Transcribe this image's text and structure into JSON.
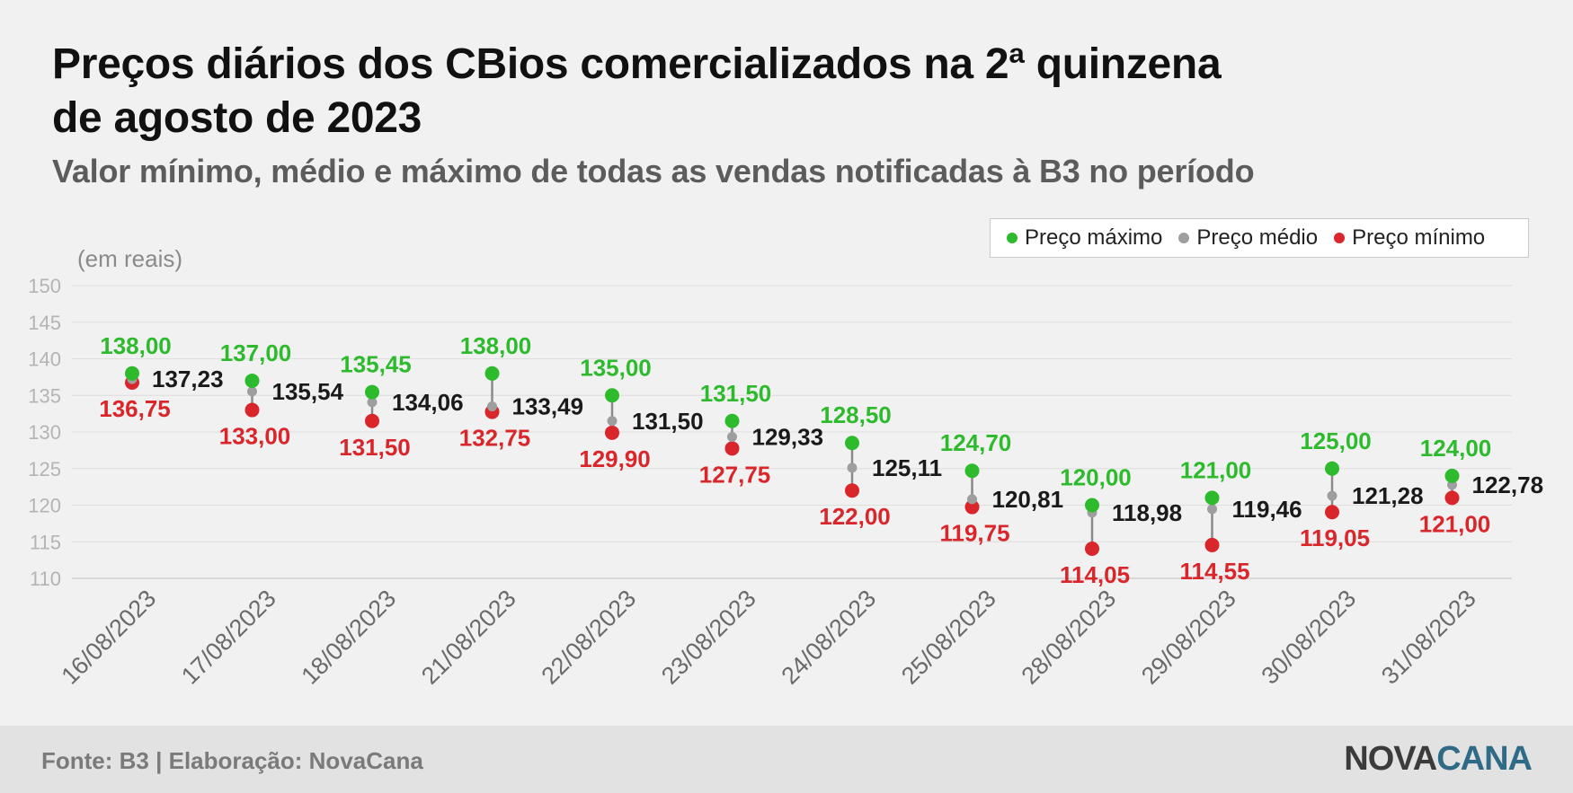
{
  "title_line1": "Preços diários dos CBios comercializados na 2ª quinzena",
  "title_line2": "de agosto de 2023",
  "subtitle": "Valor mínimo, médio e máximo de todas as vendas notificadas à B3 no período",
  "colors": {
    "max": "#2dbb2d",
    "mean": "#9e9e9e",
    "min": "#d9262b",
    "connector": "#8a8a8a",
    "text_mean": "#1a1a1a"
  },
  "chart_data": {
    "type": "scatter",
    "unit_label": "(em reais)",
    "ylim": [
      110,
      150
    ],
    "y_ticks": [
      "110",
      "115",
      "120",
      "125",
      "130",
      "135",
      "140",
      "145",
      "150"
    ],
    "grid": true,
    "legend_position": "top-right",
    "categories": [
      "16/08/2023",
      "17/08/2023",
      "18/08/2023",
      "21/08/2023",
      "22/08/2023",
      "23/08/2023",
      "24/08/2023",
      "25/08/2023",
      "28/08/2023",
      "29/08/2023",
      "30/08/2023",
      "31/08/2023"
    ],
    "series": [
      {
        "name": "Preço máximo",
        "key": "max",
        "values": [
          138.0,
          137.0,
          135.45,
          138.0,
          135.0,
          131.5,
          128.5,
          124.7,
          120.0,
          121.0,
          125.0,
          124.0
        ],
        "labels": [
          "138,00",
          "137,00",
          "135,45",
          "138,00",
          "135,00",
          "131,50",
          "128,50",
          "124,70",
          "120,00",
          "121,00",
          "125,00",
          "124,00"
        ]
      },
      {
        "name": "Preço médio",
        "key": "mean",
        "values": [
          137.23,
          135.54,
          134.06,
          133.49,
          131.5,
          129.33,
          125.11,
          120.81,
          118.98,
          119.46,
          121.28,
          122.78
        ],
        "labels": [
          "137,23",
          "135,54",
          "134,06",
          "133,49",
          "131,50",
          "129,33",
          "125,11",
          "120,81",
          "118,98",
          "119,46",
          "121,28",
          "122,78"
        ]
      },
      {
        "name": "Preço mínimo",
        "key": "min",
        "values": [
          136.75,
          133.0,
          131.5,
          132.75,
          129.9,
          127.75,
          122.0,
          119.75,
          114.05,
          114.55,
          119.05,
          121.0
        ],
        "labels": [
          "136,75",
          "133,00",
          "131,50",
          "132,75",
          "129,90",
          "127,75",
          "122,00",
          "119,75",
          "114,05",
          "114,55",
          "119,05",
          "121,00"
        ]
      }
    ]
  },
  "footer": {
    "source": "Fonte: B3 | Elaboração: NovaCana",
    "logo_part1": "NOVA",
    "logo_part2": "CANA"
  }
}
